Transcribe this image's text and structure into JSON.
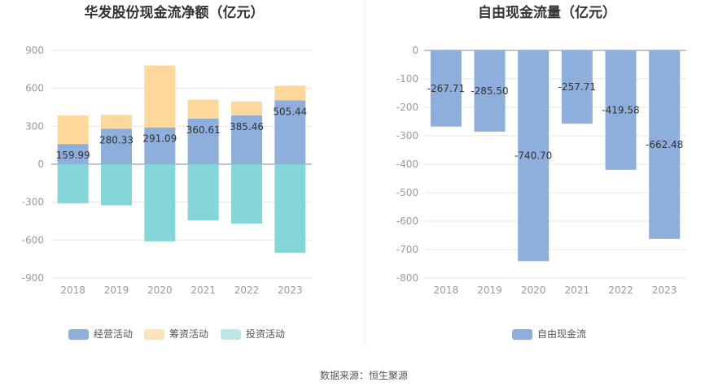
{
  "source": "数据来源：恒生聚源",
  "chart_data": [
    {
      "type": "bar",
      "stacked": true,
      "title": "华发股份现金流净额（亿元）",
      "categories": [
        "2018",
        "2019",
        "2020",
        "2021",
        "2022",
        "2023"
      ],
      "yticks": [
        "900",
        "600",
        "300",
        "0",
        "-300",
        "-600",
        "-900"
      ],
      "ylim": [
        -900,
        900
      ],
      "grid": true,
      "legend_position": "bottom",
      "series": [
        {
          "name": "经营活动",
          "color": "#8eaedc",
          "values": [
            159.99,
            280.33,
            291.09,
            360.61,
            385.46,
            505.44
          ]
        },
        {
          "name": "筹资活动",
          "color": "#fdd89a",
          "values": [
            225,
            110,
            490,
            150,
            110,
            115
          ]
        },
        {
          "name": "投资活动",
          "color": "#85d6d9",
          "values": [
            -310,
            -325,
            -610,
            -445,
            -470,
            -700
          ]
        }
      ],
      "labels": [
        "159.99",
        "280.33",
        "291.09",
        "360.61",
        "385.46",
        "505.44"
      ],
      "legend_swatch_colors": [
        "#8eaedc",
        "#fde3b8",
        "#bde8ea"
      ]
    },
    {
      "type": "bar",
      "title": "自由现金流量（亿元）",
      "categories": [
        "2018",
        "2019",
        "2020",
        "2021",
        "2022",
        "2023"
      ],
      "yticks": [
        "0",
        "-100",
        "-200",
        "-300",
        "-400",
        "-500",
        "-600",
        "-700",
        "-800"
      ],
      "ylim": [
        -800,
        0
      ],
      "grid": true,
      "legend_position": "bottom",
      "series": [
        {
          "name": "自由现金流",
          "color": "#8eaedc",
          "values": [
            -267.71,
            -285.5,
            -740.7,
            -257.71,
            -419.58,
            -662.48
          ]
        }
      ],
      "labels": [
        "-267.71",
        "-285.50",
        "-740.70",
        "-257.71",
        "-419.58",
        "-662.48"
      ]
    }
  ]
}
